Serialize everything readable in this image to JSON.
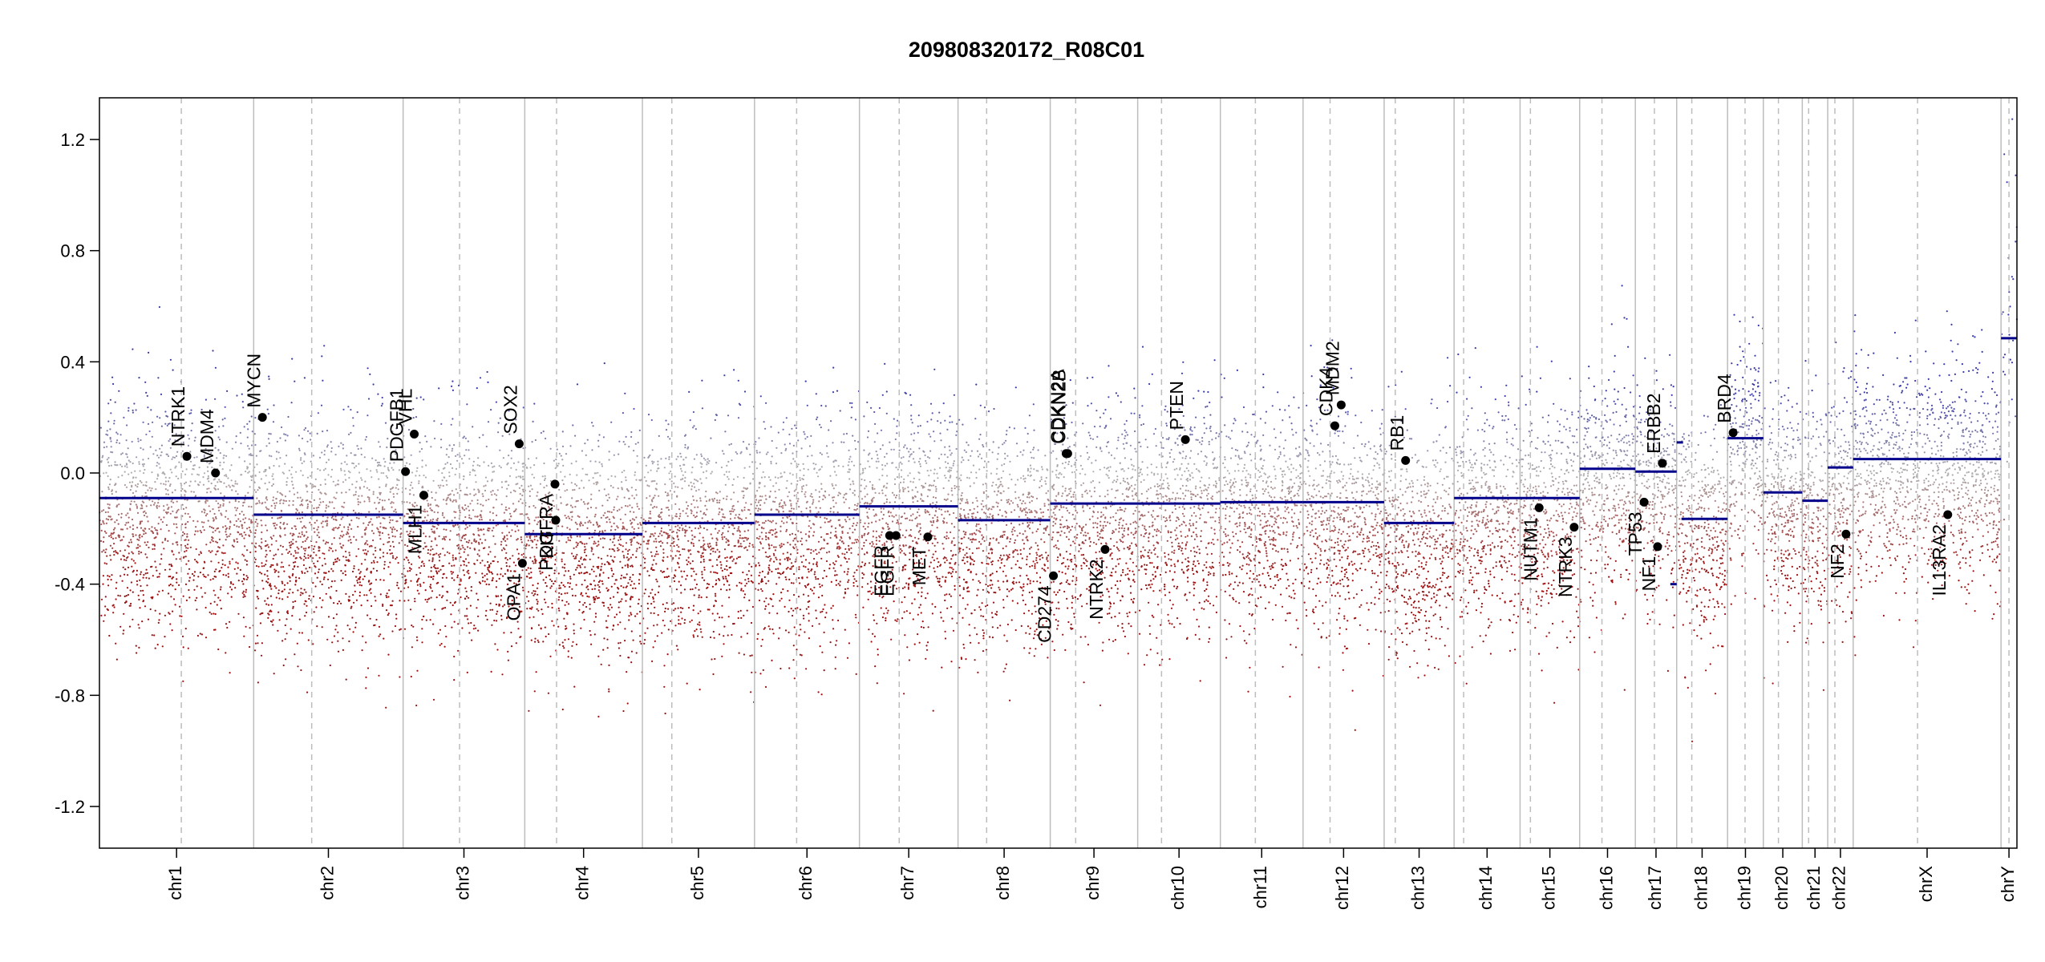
{
  "chart_data": {
    "type": "scatter",
    "title": "209808320172_R08C01",
    "xlabel": "",
    "ylabel": "",
    "ylim": [
      -1.35,
      1.35
    ],
    "yticks": [
      -1.2,
      -0.8,
      -0.4,
      0.0,
      0.4,
      0.8,
      1.2
    ],
    "ytick_labels": [
      "-1.2",
      "-0.8",
      "-0.4",
      "0.0",
      "0.4",
      "0.8",
      "1.2"
    ],
    "grid": false,
    "colors": {
      "gain": "#3a3aa8",
      "loss": "#9b1010",
      "neutral": "#b0b0b0",
      "segment": "#00008b",
      "gene": "#000000"
    },
    "chromosomes": [
      {
        "name": "chr1",
        "start": 0,
        "end": 194,
        "centromere": 103,
        "segments": [
          {
            "x0": 0,
            "x1": 194,
            "y": -0.09
          }
        ],
        "noise_center": -0.1
      },
      {
        "name": "chr2",
        "start": 194,
        "end": 382,
        "centromere": 267,
        "segments": [
          {
            "x0": 194,
            "x1": 382,
            "y": -0.15
          }
        ],
        "noise_center": -0.15
      },
      {
        "name": "chr3",
        "start": 382,
        "end": 535,
        "centromere": 453,
        "segments": [
          {
            "x0": 382,
            "x1": 535,
            "y": -0.18
          }
        ],
        "noise_center": -0.17
      },
      {
        "name": "chr4",
        "start": 535,
        "end": 683,
        "centromere": 575,
        "segments": [
          {
            "x0": 535,
            "x1": 683,
            "y": -0.22
          }
        ],
        "noise_center": -0.21
      },
      {
        "name": "chr5",
        "start": 683,
        "end": 824,
        "centromere": 720,
        "segments": [
          {
            "x0": 683,
            "x1": 824,
            "y": -0.18
          }
        ],
        "noise_center": -0.18
      },
      {
        "name": "chr6",
        "start": 824,
        "end": 956,
        "centromere": 877,
        "segments": [
          {
            "x0": 824,
            "x1": 956,
            "y": -0.15
          }
        ],
        "noise_center": -0.15
      },
      {
        "name": "chr7",
        "start": 956,
        "end": 1080,
        "centromere": 1006,
        "segments": [
          {
            "x0": 956,
            "x1": 1080,
            "y": -0.12
          }
        ],
        "noise_center": -0.12
      },
      {
        "name": "chr8",
        "start": 1080,
        "end": 1196,
        "centromere": 1116,
        "segments": [
          {
            "x0": 1080,
            "x1": 1196,
            "y": -0.17
          }
        ],
        "noise_center": -0.17
      },
      {
        "name": "chr9",
        "start": 1196,
        "end": 1306,
        "centromere": 1228,
        "segments": [
          {
            "x0": 1196,
            "x1": 1306,
            "y": -0.11
          }
        ],
        "noise_center": -0.11
      },
      {
        "name": "chr10",
        "start": 1306,
        "end": 1410,
        "centromere": 1336,
        "segments": [
          {
            "x0": 1306,
            "x1": 1410,
            "y": -0.11
          }
        ],
        "noise_center": -0.11
      },
      {
        "name": "chr11",
        "start": 1410,
        "end": 1514,
        "centromere": 1454,
        "segments": [
          {
            "x0": 1410,
            "x1": 1514,
            "y": -0.105
          }
        ],
        "noise_center": -0.1
      },
      {
        "name": "chr12",
        "start": 1514,
        "end": 1616,
        "centromere": 1548,
        "segments": [
          {
            "x0": 1514,
            "x1": 1616,
            "y": -0.105
          }
        ],
        "noise_center": -0.1
      },
      {
        "name": "chr13",
        "start": 1616,
        "end": 1704,
        "centromere": 1630,
        "segments": [
          {
            "x0": 1616,
            "x1": 1704,
            "y": -0.18
          }
        ],
        "noise_center": -0.18
      },
      {
        "name": "chr14",
        "start": 1704,
        "end": 1787,
        "centromere": 1716,
        "segments": [
          {
            "x0": 1704,
            "x1": 1787,
            "y": -0.09
          }
        ],
        "noise_center": -0.09
      },
      {
        "name": "chr15",
        "start": 1787,
        "end": 1862,
        "centromere": 1800,
        "segments": [
          {
            "x0": 1787,
            "x1": 1862,
            "y": -0.09
          }
        ],
        "noise_center": -0.09
      },
      {
        "name": "chr16",
        "start": 1862,
        "end": 1932,
        "centromere": 1890,
        "segments": [
          {
            "x0": 1862,
            "x1": 1932,
            "y": 0.015
          }
        ],
        "noise_center": 0.01
      },
      {
        "name": "chr17",
        "start": 1932,
        "end": 1984,
        "centromere": 1956,
        "segments": [
          {
            "x0": 1932,
            "x1": 1984,
            "y": 0.005
          },
          {
            "x0": 1984,
            "x1": 1992,
            "y": 0.11
          },
          {
            "x0": 1976,
            "x1": 1984,
            "y": -0.4
          }
        ],
        "noise_center": 0.0
      },
      {
        "name": "chr18",
        "start": 1984,
        "end": 2048,
        "centromere": 2003,
        "segments": [
          {
            "x0": 1990,
            "x1": 2048,
            "y": -0.165
          }
        ],
        "noise_center": -0.16
      },
      {
        "name": "chr19",
        "start": 2048,
        "end": 2093,
        "centromere": 2070,
        "segments": [
          {
            "x0": 2048,
            "x1": 2093,
            "y": 0.125
          }
        ],
        "noise_center": 0.12
      },
      {
        "name": "chr20",
        "start": 2093,
        "end": 2142,
        "centromere": 2112,
        "segments": [
          {
            "x0": 2093,
            "x1": 2142,
            "y": -0.07
          }
        ],
        "noise_center": -0.07
      },
      {
        "name": "chr21",
        "start": 2142,
        "end": 2174,
        "centromere": 2150,
        "segments": [
          {
            "x0": 2142,
            "x1": 2174,
            "y": -0.1
          }
        ],
        "noise_center": -0.1
      },
      {
        "name": "chr22",
        "start": 2174,
        "end": 2206,
        "centromere": 2183,
        "segments": [
          {
            "x0": 2174,
            "x1": 2206,
            "y": 0.02
          }
        ],
        "noise_center": 0.0
      },
      {
        "name": "chrX",
        "start": 2206,
        "end": 2392,
        "centromere": 2287,
        "segments": [
          {
            "x0": 2206,
            "x1": 2392,
            "y": 0.05
          }
        ],
        "noise_center": 0.05
      },
      {
        "name": "chrY",
        "start": 2392,
        "end": 2412,
        "centromere": 2402,
        "segments": [
          {
            "x0": 2392,
            "x1": 2412,
            "y": 0.485
          }
        ],
        "noise_center": 0.6
      }
    ],
    "genes": [
      {
        "name": "NTRK1",
        "x": 110,
        "y": 0.06,
        "label_side": "above"
      },
      {
        "name": "MDM4",
        "x": 146,
        "y": 0.0,
        "label_side": "above"
      },
      {
        "name": "MYCN",
        "x": 205,
        "y": 0.2,
        "label_side": "above"
      },
      {
        "name": "PDGFB1",
        "x": 385,
        "y": 0.005,
        "label_side": "above"
      },
      {
        "name": "VHL",
        "x": 396,
        "y": 0.14,
        "label_side": "above"
      },
      {
        "name": "MLH1",
        "x": 408,
        "y": -0.08,
        "label_side": "below"
      },
      {
        "name": "SOX2",
        "x": 528,
        "y": 0.105,
        "label_side": "above"
      },
      {
        "name": "OPA1",
        "x": 532,
        "y": -0.325,
        "label_side": "below"
      },
      {
        "name": "PDGFRA",
        "x": 573,
        "y": -0.04,
        "label_side": "below"
      },
      {
        "name": "KIT",
        "x": 574,
        "y": -0.17,
        "label_side": "below"
      },
      {
        "name": "EGFR",
        "x": 994,
        "y": -0.225,
        "label_side": "below"
      },
      {
        "name": "EGFR",
        "x": 1002,
        "y": -0.225,
        "label_side": "below"
      },
      {
        "name": "MET",
        "x": 1042,
        "y": -0.23,
        "label_side": "below"
      },
      {
        "name": "CDKN2A",
        "x": 1216,
        "y": 0.07,
        "label_side": "above"
      },
      {
        "name": "CDKN2B",
        "x": 1218,
        "y": 0.07,
        "label_side": "above"
      },
      {
        "name": "CD274",
        "x": 1200,
        "y": -0.37,
        "label_side": "below"
      },
      {
        "name": "NTRK2",
        "x": 1265,
        "y": -0.275,
        "label_side": "below"
      },
      {
        "name": "PTEN",
        "x": 1366,
        "y": 0.12,
        "label_side": "above"
      },
      {
        "name": "CDK4",
        "x": 1554,
        "y": 0.17,
        "label_side": "above"
      },
      {
        "name": "MDM2",
        "x": 1562,
        "y": 0.245,
        "label_side": "above"
      },
      {
        "name": "RB1",
        "x": 1643,
        "y": 0.045,
        "label_side": "above"
      },
      {
        "name": "NUTM1",
        "x": 1811,
        "y": -0.125,
        "label_side": "below"
      },
      {
        "name": "NTRK3",
        "x": 1855,
        "y": -0.195,
        "label_side": "below"
      },
      {
        "name": "TP53",
        "x": 1943,
        "y": -0.105,
        "label_side": "below"
      },
      {
        "name": "NF1",
        "x": 1960,
        "y": -0.265,
        "label_side": "below"
      },
      {
        "name": "ERBB2",
        "x": 1966,
        "y": 0.035,
        "label_side": "above"
      },
      {
        "name": "BRD4",
        "x": 2055,
        "y": 0.145,
        "label_side": "above"
      },
      {
        "name": "NF2",
        "x": 2197,
        "y": -0.22,
        "label_side": "below"
      },
      {
        "name": "IL13RA2",
        "x": 2325,
        "y": -0.15,
        "label_side": "below"
      }
    ]
  }
}
